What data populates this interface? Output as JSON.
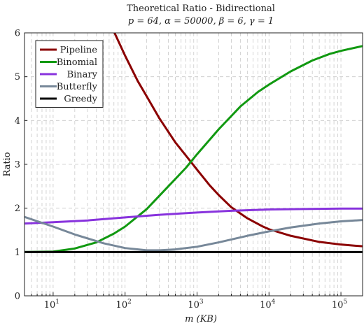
{
  "chart_data": {
    "type": "line",
    "title": "Theoretical Ratio - Bidirectional",
    "subtitle": "p = 64, α = 50000, β = 6, γ = 1",
    "xlabel": "m (KB)",
    "ylabel": "Ratio",
    "x_scale": "log",
    "xlim": [
      4,
      200000
    ],
    "ylim": [
      0,
      6
    ],
    "x_ticks": [
      {
        "value": 10,
        "base": "10",
        "exp": "1"
      },
      {
        "value": 100,
        "base": "10",
        "exp": "2"
      },
      {
        "value": 1000,
        "base": "10",
        "exp": "3"
      },
      {
        "value": 10000,
        "base": "10",
        "exp": "4"
      },
      {
        "value": 100000,
        "base": "10",
        "exp": "5"
      }
    ],
    "y_ticks": [
      "0",
      "1",
      "2",
      "3",
      "4",
      "5",
      "6"
    ],
    "grid": true,
    "legend_position": "top-left",
    "series": [
      {
        "name": "Pipeline",
        "color": "#8b0000",
        "x": [
          70,
          100,
          150,
          200,
          300,
          500,
          800,
          1000,
          1500,
          2000,
          3000,
          5000,
          8000,
          10000,
          20000,
          50000,
          100000,
          200000
        ],
        "y": [
          6.03,
          5.48,
          4.9,
          4.55,
          4.05,
          3.5,
          3.08,
          2.88,
          2.52,
          2.3,
          2.02,
          1.77,
          1.59,
          1.52,
          1.37,
          1.23,
          1.17,
          1.13
        ]
      },
      {
        "name": "Binomial",
        "color": "#119911",
        "x": [
          4,
          10,
          20,
          40,
          70,
          100,
          200,
          400,
          700,
          1000,
          2000,
          4000,
          7000,
          10000,
          20000,
          40000,
          70000,
          100000,
          200000
        ],
        "y": [
          1.0,
          1.01,
          1.08,
          1.22,
          1.42,
          1.58,
          1.98,
          2.5,
          2.92,
          3.23,
          3.8,
          4.32,
          4.65,
          4.82,
          5.12,
          5.37,
          5.52,
          5.59,
          5.7
        ]
      },
      {
        "name": "Binary",
        "color": "#8833dd",
        "x": [
          4,
          10,
          30,
          100,
          300,
          1000,
          3000,
          10000,
          30000,
          100000,
          200000
        ],
        "y": [
          1.65,
          1.68,
          1.72,
          1.79,
          1.85,
          1.9,
          1.94,
          1.97,
          1.98,
          1.99,
          1.99
        ]
      },
      {
        "name": "Butterfly",
        "color": "#778899",
        "x": [
          4,
          10,
          20,
          50,
          100,
          200,
          300,
          500,
          1000,
          2000,
          5000,
          10000,
          20000,
          50000,
          100000,
          200000
        ],
        "y": [
          1.8,
          1.58,
          1.4,
          1.2,
          1.09,
          1.04,
          1.04,
          1.06,
          1.12,
          1.22,
          1.37,
          1.47,
          1.56,
          1.65,
          1.7,
          1.73
        ]
      },
      {
        "name": "Greedy",
        "color": "#000000",
        "x": [
          4,
          200000
        ],
        "y": [
          1.0,
          1.0
        ]
      }
    ]
  }
}
